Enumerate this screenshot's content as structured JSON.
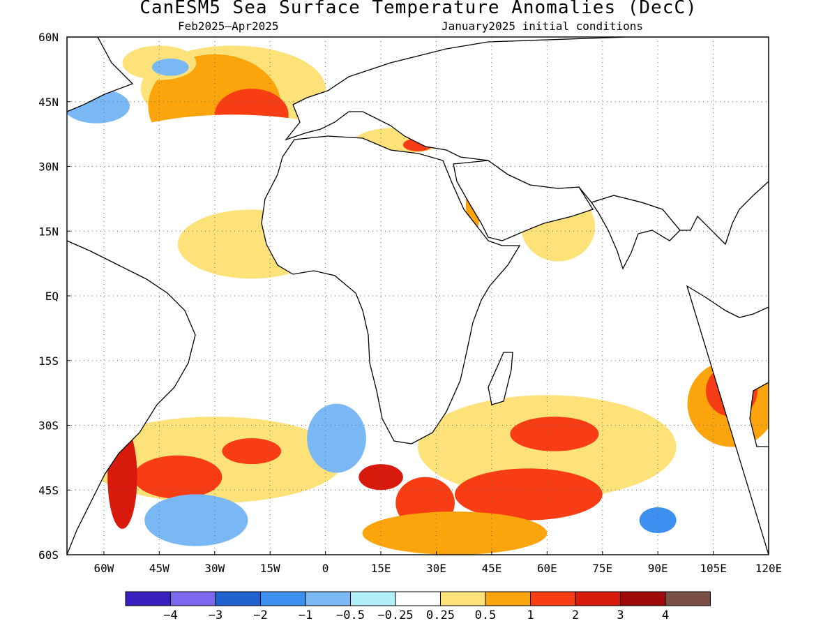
{
  "title": "CanESM5 Sea Surface Temperature Anomalies (DecC)",
  "subtitle_left": "Feb2025–Apr2025",
  "subtitle_right": "January2025 initial conditions",
  "map": {
    "lon_range": [
      -70,
      120
    ],
    "lat_range": [
      -60,
      60
    ],
    "lat_ticks": [
      {
        "value": 60,
        "label": "60N"
      },
      {
        "value": 45,
        "label": "45N"
      },
      {
        "value": 30,
        "label": "30N"
      },
      {
        "value": 15,
        "label": "15N"
      },
      {
        "value": 0,
        "label": "EQ"
      },
      {
        "value": -15,
        "label": "15S"
      },
      {
        "value": -30,
        "label": "30S"
      },
      {
        "value": -45,
        "label": "45S"
      },
      {
        "value": -60,
        "label": "60S"
      }
    ],
    "lon_ticks": [
      {
        "value": -60,
        "label": "60W"
      },
      {
        "value": -45,
        "label": "45W"
      },
      {
        "value": -30,
        "label": "30W"
      },
      {
        "value": -15,
        "label": "15W"
      },
      {
        "value": 0,
        "label": "0"
      },
      {
        "value": 15,
        "label": "15E"
      },
      {
        "value": 30,
        "label": "30E"
      },
      {
        "value": 45,
        "label": "45E"
      },
      {
        "value": 60,
        "label": "60E"
      },
      {
        "value": 75,
        "label": "75E"
      },
      {
        "value": 90,
        "label": "90E"
      },
      {
        "value": 105,
        "label": "105E"
      },
      {
        "value": 120,
        "label": "120E"
      }
    ],
    "grid": "dotted"
  },
  "colorbar": {
    "colors": [
      "#3a1fbf",
      "#7b68ee",
      "#1f62d0",
      "#3d8ff0",
      "#7ab8f5",
      "#b0eef8",
      "#ffffff",
      "#fde27a",
      "#fca40c",
      "#f83c14",
      "#d81a0c",
      "#a00a08",
      "#7a5046"
    ],
    "labels": [
      "−4",
      "−3",
      "−2",
      "−1",
      "−0.5",
      "−0.25",
      "0.25",
      "0.5",
      "1",
      "2",
      "3",
      "4"
    ]
  },
  "anomaly_patches": [
    {
      "lon": -25,
      "lat": 48,
      "rx": 25,
      "ry": 10,
      "level": 7
    },
    {
      "lon": -30,
      "lat": 44,
      "rx": 18,
      "ry": 12,
      "level": 8
    },
    {
      "lon": -20,
      "lat": 42,
      "rx": 10,
      "ry": 6,
      "level": 9
    },
    {
      "lon": -25,
      "lat": 28,
      "rx": 45,
      "ry": 14,
      "level": 6
    },
    {
      "lon": -20,
      "lat": 12,
      "rx": 20,
      "ry": 8,
      "level": 7
    },
    {
      "lon": -62,
      "lat": 44,
      "rx": 9,
      "ry": 4,
      "level": 4
    },
    {
      "lon": -45,
      "lat": 54,
      "rx": 10,
      "ry": 4,
      "level": 7
    },
    {
      "lon": -42,
      "lat": 53,
      "rx": 5,
      "ry": 2,
      "level": 4
    },
    {
      "lon": 20,
      "lat": 36,
      "rx": 12,
      "ry": 3,
      "level": 7
    },
    {
      "lon": 25,
      "lat": 35,
      "rx": 4,
      "ry": 1.5,
      "level": 9
    },
    {
      "lon": 40,
      "lat": 22,
      "rx": 2,
      "ry": 8,
      "level": 8
    },
    {
      "lon": 63,
      "lat": 16,
      "rx": 10,
      "ry": 8,
      "level": 7
    },
    {
      "lon": 70,
      "lat": 3,
      "rx": 25,
      "ry": 5,
      "level": 6
    },
    {
      "lon": 95,
      "lat": -12,
      "rx": 30,
      "ry": 6,
      "level": 6
    },
    {
      "lon": 110,
      "lat": -25,
      "rx": 12,
      "ry": 10,
      "level": 8
    },
    {
      "lon": 110,
      "lat": -22,
      "rx": 7,
      "ry": 6,
      "level": 9
    },
    {
      "lon": 60,
      "lat": -35,
      "rx": 35,
      "ry": 12,
      "level": 7
    },
    {
      "lon": 62,
      "lat": -32,
      "rx": 12,
      "ry": 4,
      "level": 9
    },
    {
      "lon": 55,
      "lat": -46,
      "rx": 20,
      "ry": 6,
      "level": 9
    },
    {
      "lon": 27,
      "lat": -48,
      "rx": 8,
      "ry": 6,
      "level": 9
    },
    {
      "lon": 15,
      "lat": -42,
      "rx": 6,
      "ry": 3,
      "level": 10
    },
    {
      "lon": -30,
      "lat": -38,
      "rx": 35,
      "ry": 10,
      "level": 7
    },
    {
      "lon": -40,
      "lat": -42,
      "rx": 12,
      "ry": 5,
      "level": 9
    },
    {
      "lon": -55,
      "lat": -42,
      "rx": 4,
      "ry": 12,
      "level": 10
    },
    {
      "lon": -20,
      "lat": -36,
      "rx": 8,
      "ry": 3,
      "level": 9
    },
    {
      "lon": -35,
      "lat": -52,
      "rx": 14,
      "ry": 6,
      "level": 4
    },
    {
      "lon": 3,
      "lat": -33,
      "rx": 8,
      "ry": 8,
      "level": 4
    },
    {
      "lon": 90,
      "lat": -52,
      "rx": 5,
      "ry": 3,
      "level": 3
    },
    {
      "lon": 35,
      "lat": -55,
      "rx": 25,
      "ry": 5,
      "level": 8
    }
  ]
}
